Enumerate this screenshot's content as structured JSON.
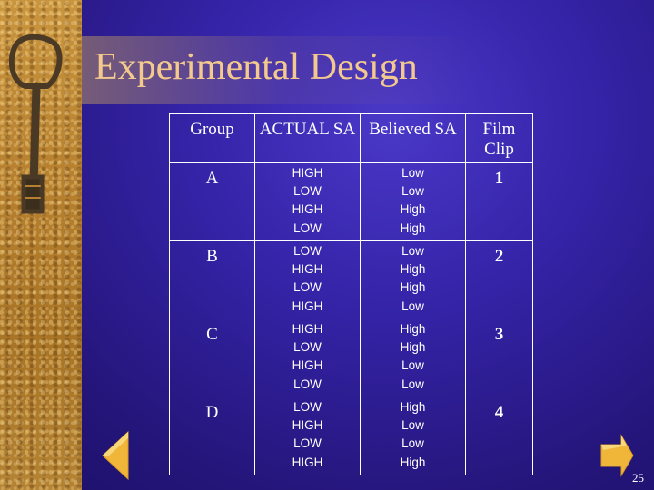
{
  "slide": {
    "title": "Experimental Design",
    "page_number": "25"
  },
  "table": {
    "headers": [
      "Group",
      "ACTUAL SA",
      "Believed SA",
      "Film Clip"
    ],
    "rows": [
      {
        "group": "A",
        "actual": [
          "HIGH",
          "LOW",
          "HIGH",
          "LOW"
        ],
        "believed": [
          "Low",
          "Low",
          "High",
          "High"
        ],
        "clip": "1"
      },
      {
        "group": "B",
        "actual": [
          "LOW",
          "HIGH",
          "LOW",
          "HIGH"
        ],
        "believed": [
          "Low",
          "High",
          "High",
          "Low"
        ],
        "clip": "2"
      },
      {
        "group": "C",
        "actual": [
          "HIGH",
          "LOW",
          "HIGH",
          "LOW"
        ],
        "believed": [
          "High",
          "High",
          "Low",
          "Low"
        ],
        "clip": "3"
      },
      {
        "group": "D",
        "actual": [
          "LOW",
          "HIGH",
          "LOW",
          "HIGH"
        ],
        "believed": [
          "High",
          "Low",
          "Low",
          "High"
        ],
        "clip": "4"
      }
    ]
  },
  "colors": {
    "background": "#3524a8",
    "title": "#f3c98d",
    "nav_arrow": "#f0b63a"
  },
  "icons": {
    "left_image": "antique-key-image",
    "prev": "arrow-left-icon",
    "next": "arrow-right-icon"
  }
}
